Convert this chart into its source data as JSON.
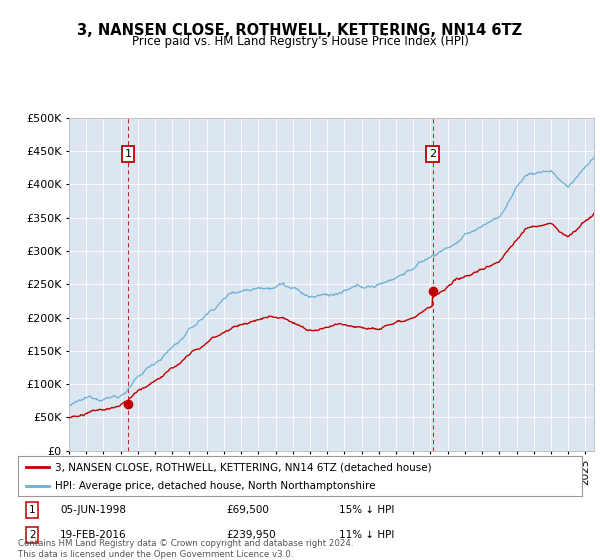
{
  "title": "3, NANSEN CLOSE, ROTHWELL, KETTERING, NN14 6TZ",
  "subtitle": "Price paid vs. HM Land Registry's House Price Index (HPI)",
  "legend_line1": "3, NANSEN CLOSE, ROTHWELL, KETTERING, NN14 6TZ (detached house)",
  "legend_line2": "HPI: Average price, detached house, North Northamptonshire",
  "footer": "Contains HM Land Registry data © Crown copyright and database right 2024.\nThis data is licensed under the Open Government Licence v3.0.",
  "annotation1": {
    "label": "1",
    "date": "05-JUN-1998",
    "price": 69500,
    "note": "15% ↓ HPI"
  },
  "annotation2": {
    "label": "2",
    "date": "19-FEB-2016",
    "price": 239950,
    "note": "11% ↓ HPI"
  },
  "hpi_color": "#6baed6",
  "price_color": "#c00000",
  "plot_bg_color": "#dce6f1",
  "ylim": [
    0,
    500000
  ],
  "yticks": [
    0,
    50000,
    100000,
    150000,
    200000,
    250000,
    300000,
    350000,
    400000,
    450000,
    500000
  ],
  "sale1_date": 1998.427,
  "sale1_price": 69500,
  "sale2_date": 2016.132,
  "sale2_price": 239950,
  "xmin": 1995,
  "xmax": 2025.5
}
